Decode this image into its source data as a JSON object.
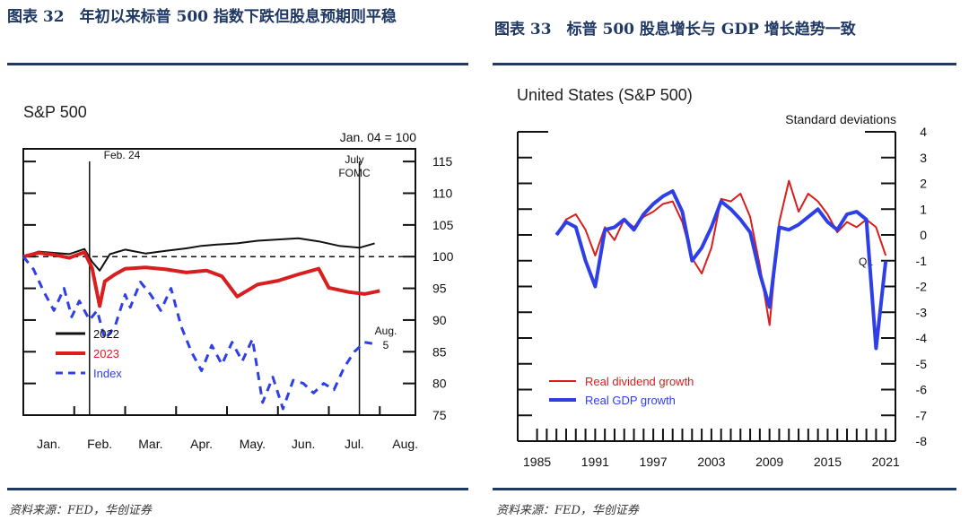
{
  "left_panel": {
    "heading": "图表 32　年初以来标普 500 指数下跌但股息预期则平稳",
    "source": "资料来源：FED，华创证券"
  },
  "right_panel": {
    "heading": "图表 33　标普 500 股息增长与 GDP 增长趋势一致",
    "source": "资料来源：FED，华创证券"
  },
  "colors": {
    "navy": "#1f3864",
    "black": "#111111",
    "red": "#d81e1e",
    "blue": "#2f3fe6"
  },
  "chart_data": [
    {
      "type": "line",
      "title": "S&P 500",
      "corner_note": "Jan. 04 = 100",
      "x_tick_labels": [
        "Jan.",
        "Feb.",
        "Mar.",
        "Apr.",
        "May.",
        "Jun.",
        "Jul.",
        "Aug."
      ],
      "y_ticks": [
        75,
        80,
        85,
        90,
        95,
        100,
        105,
        110,
        115
      ],
      "ylim": [
        75,
        117
      ],
      "xlim": [
        0,
        7.7
      ],
      "reference_line": 100,
      "annotations": {
        "feb24": "Feb. 24",
        "fomc_line1": "July",
        "fomc_line2": "FOMC",
        "aug_line1": "Aug.",
        "aug_line2": "5"
      },
      "event_lines": [
        1.3,
        6.6
      ],
      "series": [
        {
          "name": "2022",
          "style": "solid",
          "color": "#111111",
          "x": [
            0,
            0.3,
            0.6,
            0.9,
            1.2,
            1.35,
            1.5,
            1.7,
            2.0,
            2.4,
            2.8,
            3.2,
            3.5,
            3.8,
            4.2,
            4.6,
            5.0,
            5.4,
            5.8,
            6.2,
            6.6,
            6.9
          ],
          "y": [
            100,
            100.8,
            100.6,
            100.4,
            101.2,
            99.2,
            97.8,
            100.4,
            101.1,
            100.5,
            100.9,
            101.3,
            101.7,
            101.9,
            102.1,
            102.5,
            102.7,
            102.9,
            102.4,
            101.7,
            101.4,
            102.1
          ]
        },
        {
          "name": "2023",
          "style": "solid",
          "color": "#d81e1e",
          "x": [
            0,
            0.3,
            0.6,
            0.9,
            1.2,
            1.35,
            1.5,
            1.6,
            1.8,
            2.0,
            2.4,
            2.8,
            3.2,
            3.6,
            3.9,
            4.2,
            4.6,
            5.0,
            5.4,
            5.8,
            6.0,
            6.4,
            6.7,
            7.0
          ],
          "y": [
            100,
            100.6,
            100.3,
            99.8,
            100.7,
            98.2,
            92.2,
            96.1,
            97.2,
            98.1,
            98.3,
            98.0,
            97.5,
            97.8,
            96.9,
            93.7,
            95.6,
            96.2,
            97.2,
            98.1,
            95.1,
            94.4,
            94.1,
            94.6
          ]
        },
        {
          "name": "Index",
          "style": "dashed",
          "color": "#2f3fe6",
          "x": [
            0,
            0.2,
            0.4,
            0.6,
            0.8,
            0.95,
            1.1,
            1.3,
            1.45,
            1.6,
            1.8,
            2.0,
            2.1,
            2.3,
            2.5,
            2.7,
            2.9,
            3.1,
            3.3,
            3.5,
            3.7,
            3.9,
            4.1,
            4.3,
            4.5,
            4.7,
            4.9,
            5.1,
            5.3,
            5.5,
            5.7,
            5.9,
            6.1,
            6.3,
            6.5,
            6.7,
            6.85
          ],
          "y": [
            100,
            98,
            94.5,
            91.5,
            95,
            90.5,
            93,
            90,
            91.5,
            87,
            89,
            94,
            92,
            96,
            94,
            91.5,
            95,
            89,
            85,
            82,
            86,
            83,
            86.5,
            83.5,
            87,
            77,
            81,
            76,
            80.5,
            80,
            78.5,
            80,
            79,
            82.5,
            85,
            86.5,
            86.3
          ]
        }
      ]
    },
    {
      "type": "line",
      "title": "United States (S&P 500)",
      "ylabel": "Standard deviations",
      "x_ticks": [
        1985,
        1991,
        1997,
        2003,
        2009,
        2015,
        2021
      ],
      "y_ticks": [
        4,
        3,
        2,
        1,
        0,
        -1,
        -2,
        -3,
        -4,
        -5,
        -6,
        -7,
        -8
      ],
      "xlim": [
        1983,
        2022
      ],
      "ylim": [
        -8,
        4
      ],
      "annotation": "Q1",
      "series": [
        {
          "name": "Real dividend growth",
          "color": "#d81e1e",
          "x": [
            1987,
            1988,
            1989,
            1990,
            1991,
            1992,
            1993,
            1994,
            1995,
            1996,
            1997,
            1998,
            1999,
            2000,
            2001,
            2002,
            2003,
            2004,
            2005,
            2006,
            2007,
            2008,
            2009,
            2010,
            2011,
            2012,
            2013,
            2014,
            2015,
            2016,
            2017,
            2018,
            2019,
            2020,
            2021
          ],
          "y": [
            0,
            0.6,
            0.8,
            0.2,
            -0.8,
            0.3,
            -0.2,
            0.6,
            0.3,
            0.7,
            0.9,
            1.2,
            1.3,
            0.5,
            -0.9,
            -1.5,
            -0.5,
            1.4,
            1.3,
            1.6,
            0.7,
            -1.2,
            -3.5,
            0.5,
            2.1,
            0.9,
            1.6,
            1.3,
            0.8,
            0.1,
            0.5,
            0.3,
            0.6,
            0.3,
            -0.8
          ]
        },
        {
          "name": "Real GDP growth",
          "color": "#2f3fe6",
          "x": [
            1987,
            1988,
            1989,
            1990,
            1991,
            1992,
            1993,
            1994,
            1995,
            1996,
            1997,
            1998,
            1999,
            2000,
            2001,
            2002,
            2003,
            2004,
            2005,
            2006,
            2007,
            2008,
            2009,
            2010,
            2011,
            2012,
            2013,
            2014,
            2015,
            2016,
            2017,
            2018,
            2019,
            2020,
            2021
          ],
          "y": [
            0,
            0.5,
            0.3,
            -1.0,
            -2.0,
            0.2,
            0.3,
            0.6,
            0.2,
            0.8,
            1.2,
            1.5,
            1.7,
            0.9,
            -1.0,
            -0.5,
            0.3,
            1.3,
            1.0,
            0.6,
            0.1,
            -1.5,
            -2.8,
            0.3,
            0.2,
            0.4,
            0.7,
            1.0,
            0.5,
            0.2,
            0.8,
            0.9,
            0.6,
            -4.4,
            -1.0
          ]
        }
      ]
    }
  ]
}
